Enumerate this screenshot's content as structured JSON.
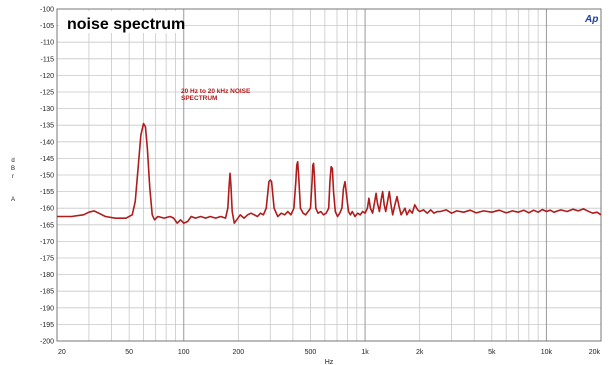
{
  "chart_data": {
    "type": "line",
    "title": "noise spectrum",
    "logo": "Ap",
    "annotation": [
      "20 Hz to 20 kHz NOISE",
      "SPECTRUM"
    ],
    "xlabel": "Hz",
    "ylabel": [
      "d",
      "B",
      "r",
      "A"
    ],
    "x_scale": "log",
    "xlim": [
      20,
      20000
    ],
    "ylim": [
      -200,
      -100
    ],
    "grid": true,
    "x_tick_labels": [
      {
        "value": 20,
        "label": "20"
      },
      {
        "value": 50,
        "label": "50"
      },
      {
        "value": 100,
        "label": "100"
      },
      {
        "value": 200,
        "label": "200"
      },
      {
        "value": 500,
        "label": "500"
      },
      {
        "value": 1000,
        "label": "1k"
      },
      {
        "value": 2000,
        "label": "2k"
      },
      {
        "value": 5000,
        "label": "5k"
      },
      {
        "value": 10000,
        "label": "10k"
      },
      {
        "value": 20000,
        "label": "20k"
      }
    ],
    "y_ticks": [
      -100,
      -105,
      -110,
      -115,
      -120,
      -125,
      -130,
      -135,
      -140,
      -145,
      -150,
      -155,
      -160,
      -165,
      -170,
      -175,
      -180,
      -185,
      -190,
      -195,
      -200
    ],
    "line_color": "#b01c1c",
    "series": [
      {
        "values": [
          [
            20,
            -162.5
          ],
          [
            24,
            -162.5
          ],
          [
            28,
            -162
          ],
          [
            30,
            -161.2
          ],
          [
            32,
            -160.8
          ],
          [
            34,
            -161.5
          ],
          [
            37,
            -162.5
          ],
          [
            42,
            -163
          ],
          [
            48,
            -163
          ],
          [
            52,
            -162
          ],
          [
            54,
            -158
          ],
          [
            56,
            -148
          ],
          [
            58,
            -138
          ],
          [
            60,
            -134.5
          ],
          [
            61.5,
            -135.5
          ],
          [
            63,
            -142
          ],
          [
            65,
            -154
          ],
          [
            67,
            -162
          ],
          [
            69,
            -163.5
          ],
          [
            72,
            -162.5
          ],
          [
            78,
            -163
          ],
          [
            84,
            -162.5
          ],
          [
            88,
            -163
          ],
          [
            92,
            -164.5
          ],
          [
            96,
            -163.5
          ],
          [
            100,
            -164.5
          ],
          [
            105,
            -164
          ],
          [
            110,
            -162.5
          ],
          [
            116,
            -163
          ],
          [
            124,
            -162.5
          ],
          [
            132,
            -163
          ],
          [
            140,
            -162.5
          ],
          [
            150,
            -163
          ],
          [
            160,
            -162.5
          ],
          [
            170,
            -163
          ],
          [
            175,
            -160
          ],
          [
            178,
            -153
          ],
          [
            180,
            -149.5
          ],
          [
            182,
            -153
          ],
          [
            185,
            -161
          ],
          [
            190,
            -164.5
          ],
          [
            196,
            -163.5
          ],
          [
            205,
            -162
          ],
          [
            215,
            -163
          ],
          [
            225,
            -162
          ],
          [
            235,
            -161.5
          ],
          [
            245,
            -162
          ],
          [
            255,
            -162.5
          ],
          [
            265,
            -161.5
          ],
          [
            275,
            -162
          ],
          [
            285,
            -160
          ],
          [
            295,
            -152
          ],
          [
            300,
            -151.5
          ],
          [
            305,
            -152
          ],
          [
            315,
            -160
          ],
          [
            330,
            -162.5
          ],
          [
            345,
            -161.5
          ],
          [
            360,
            -162
          ],
          [
            375,
            -161
          ],
          [
            390,
            -162
          ],
          [
            405,
            -160
          ],
          [
            415,
            -152
          ],
          [
            420,
            -147
          ],
          [
            425,
            -146
          ],
          [
            430,
            -150
          ],
          [
            440,
            -160
          ],
          [
            455,
            -161.5
          ],
          [
            470,
            -162
          ],
          [
            485,
            -161
          ],
          [
            500,
            -160
          ],
          [
            510,
            -152
          ],
          [
            515,
            -147
          ],
          [
            520,
            -146.5
          ],
          [
            525,
            -150
          ],
          [
            535,
            -160
          ],
          [
            550,
            -161.5
          ],
          [
            570,
            -161
          ],
          [
            590,
            -162
          ],
          [
            610,
            -161.5
          ],
          [
            630,
            -160
          ],
          [
            640,
            -152
          ],
          [
            650,
            -147.5
          ],
          [
            660,
            -148
          ],
          [
            670,
            -155
          ],
          [
            685,
            -161
          ],
          [
            705,
            -162.5
          ],
          [
            725,
            -161.5
          ],
          [
            745,
            -160
          ],
          [
            760,
            -154
          ],
          [
            775,
            -152
          ],
          [
            790,
            -156
          ],
          [
            810,
            -161
          ],
          [
            830,
            -162
          ],
          [
            850,
            -161
          ],
          [
            880,
            -162.5
          ],
          [
            910,
            -161.5
          ],
          [
            940,
            -162
          ],
          [
            970,
            -161
          ],
          [
            1000,
            -161.5
          ],
          [
            1030,
            -160
          ],
          [
            1050,
            -157
          ],
          [
            1070,
            -160
          ],
          [
            1100,
            -161.5
          ],
          [
            1130,
            -158
          ],
          [
            1150,
            -155.5
          ],
          [
            1170,
            -158.5
          ],
          [
            1200,
            -161
          ],
          [
            1230,
            -157
          ],
          [
            1250,
            -155
          ],
          [
            1275,
            -159
          ],
          [
            1300,
            -161
          ],
          [
            1330,
            -158
          ],
          [
            1360,
            -155
          ],
          [
            1390,
            -159
          ],
          [
            1420,
            -162
          ],
          [
            1460,
            -159
          ],
          [
            1500,
            -156.5
          ],
          [
            1540,
            -159.5
          ],
          [
            1580,
            -162
          ],
          [
            1620,
            -161
          ],
          [
            1660,
            -160
          ],
          [
            1700,
            -162
          ],
          [
            1760,
            -160.5
          ],
          [
            1820,
            -161.5
          ],
          [
            1880,
            -159
          ],
          [
            1950,
            -160.5
          ],
          [
            2000,
            -161
          ],
          [
            2100,
            -160.5
          ],
          [
            2200,
            -161.5
          ],
          [
            2300,
            -160.5
          ],
          [
            2400,
            -161.5
          ],
          [
            2500,
            -161
          ],
          [
            2600,
            -161
          ],
          [
            2800,
            -160.5
          ],
          [
            3000,
            -161.5
          ],
          [
            3200,
            -160.8
          ],
          [
            3500,
            -161.2
          ],
          [
            3800,
            -160.6
          ],
          [
            4100,
            -161.4
          ],
          [
            4500,
            -160.8
          ],
          [
            5000,
            -161.2
          ],
          [
            5500,
            -160.6
          ],
          [
            6000,
            -161.4
          ],
          [
            6500,
            -160.8
          ],
          [
            7000,
            -161.2
          ],
          [
            7500,
            -160.6
          ],
          [
            8000,
            -161.4
          ],
          [
            8500,
            -160.6
          ],
          [
            9000,
            -161.2
          ],
          [
            9500,
            -160.4
          ],
          [
            10000,
            -161
          ],
          [
            10500,
            -160.6
          ],
          [
            11000,
            -161.2
          ],
          [
            12000,
            -160.5
          ],
          [
            13000,
            -161
          ],
          [
            14000,
            -160.3
          ],
          [
            15000,
            -160.8
          ],
          [
            16000,
            -160.2
          ],
          [
            17000,
            -160.9
          ],
          [
            18000,
            -161.5
          ],
          [
            19000,
            -161.2
          ],
          [
            20000,
            -162
          ]
        ]
      }
    ]
  }
}
